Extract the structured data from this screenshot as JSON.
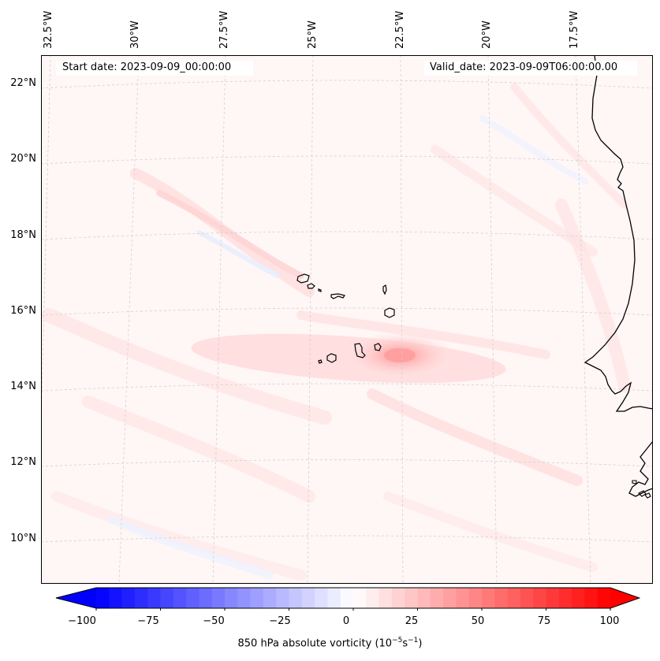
{
  "map": {
    "start_date": "Start date: 2023-09-09_00:00:00",
    "valid_date": "Valid_date: 2023-09-09T06:00:00.00",
    "lon_labels": [
      "32.5°W",
      "30°W",
      "27.5°W",
      "25°W",
      "22.5°W",
      "20°W",
      "17.5°W"
    ],
    "lat_labels": [
      "22°N",
      "20°N",
      "18°N",
      "16°N",
      "14°N",
      "12°N",
      "10°N"
    ],
    "field": "850 hPa absolute vorticity",
    "coastline_color": "#000000",
    "gridline_color": "#cccccc"
  },
  "colorbar": {
    "ticks": [
      "−100",
      "−75",
      "−50",
      "−25",
      "0",
      "25",
      "50",
      "75",
      "100"
    ],
    "label": "850 hPa absolute vorticity (10",
    "label_exp1": "−5",
    "label_mid": "s",
    "label_exp2": "−1",
    "label_end": ")",
    "min": -100,
    "max": 100,
    "low_color": "#0000ff",
    "mid_color": "#ffffff",
    "high_color": "#ff0000"
  }
}
